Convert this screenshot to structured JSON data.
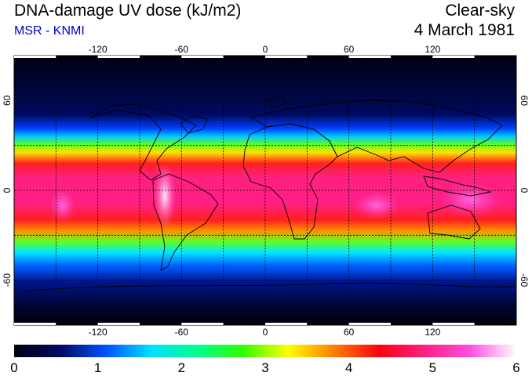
{
  "header": {
    "title": "DNA-damage UV dose (kJ/m2)",
    "subtitle": "MSR - KNMI",
    "sky_condition": "Clear-sky",
    "date": "4 March 1981"
  },
  "map": {
    "lon_range": [
      -180,
      180
    ],
    "lat_range": [
      -90,
      90
    ],
    "lon_ticks": [
      "-120",
      "-60",
      "0",
      "60",
      "120"
    ],
    "lat_ticks": [
      "60",
      "0",
      "-60"
    ],
    "grid_spacing_deg": 30
  },
  "colorbar": {
    "min": 0,
    "max": 6,
    "labels": [
      "0",
      "1",
      "2",
      "3",
      "4",
      "5",
      "6"
    ],
    "stops": [
      "#000010",
      "#000a60",
      "#0050ff",
      "#00e0ff",
      "#00ff90",
      "#30ff00",
      "#ffff00",
      "#ff8000",
      "#ff0010",
      "#ff2080",
      "#ff50e0",
      "#ffffff"
    ]
  }
}
